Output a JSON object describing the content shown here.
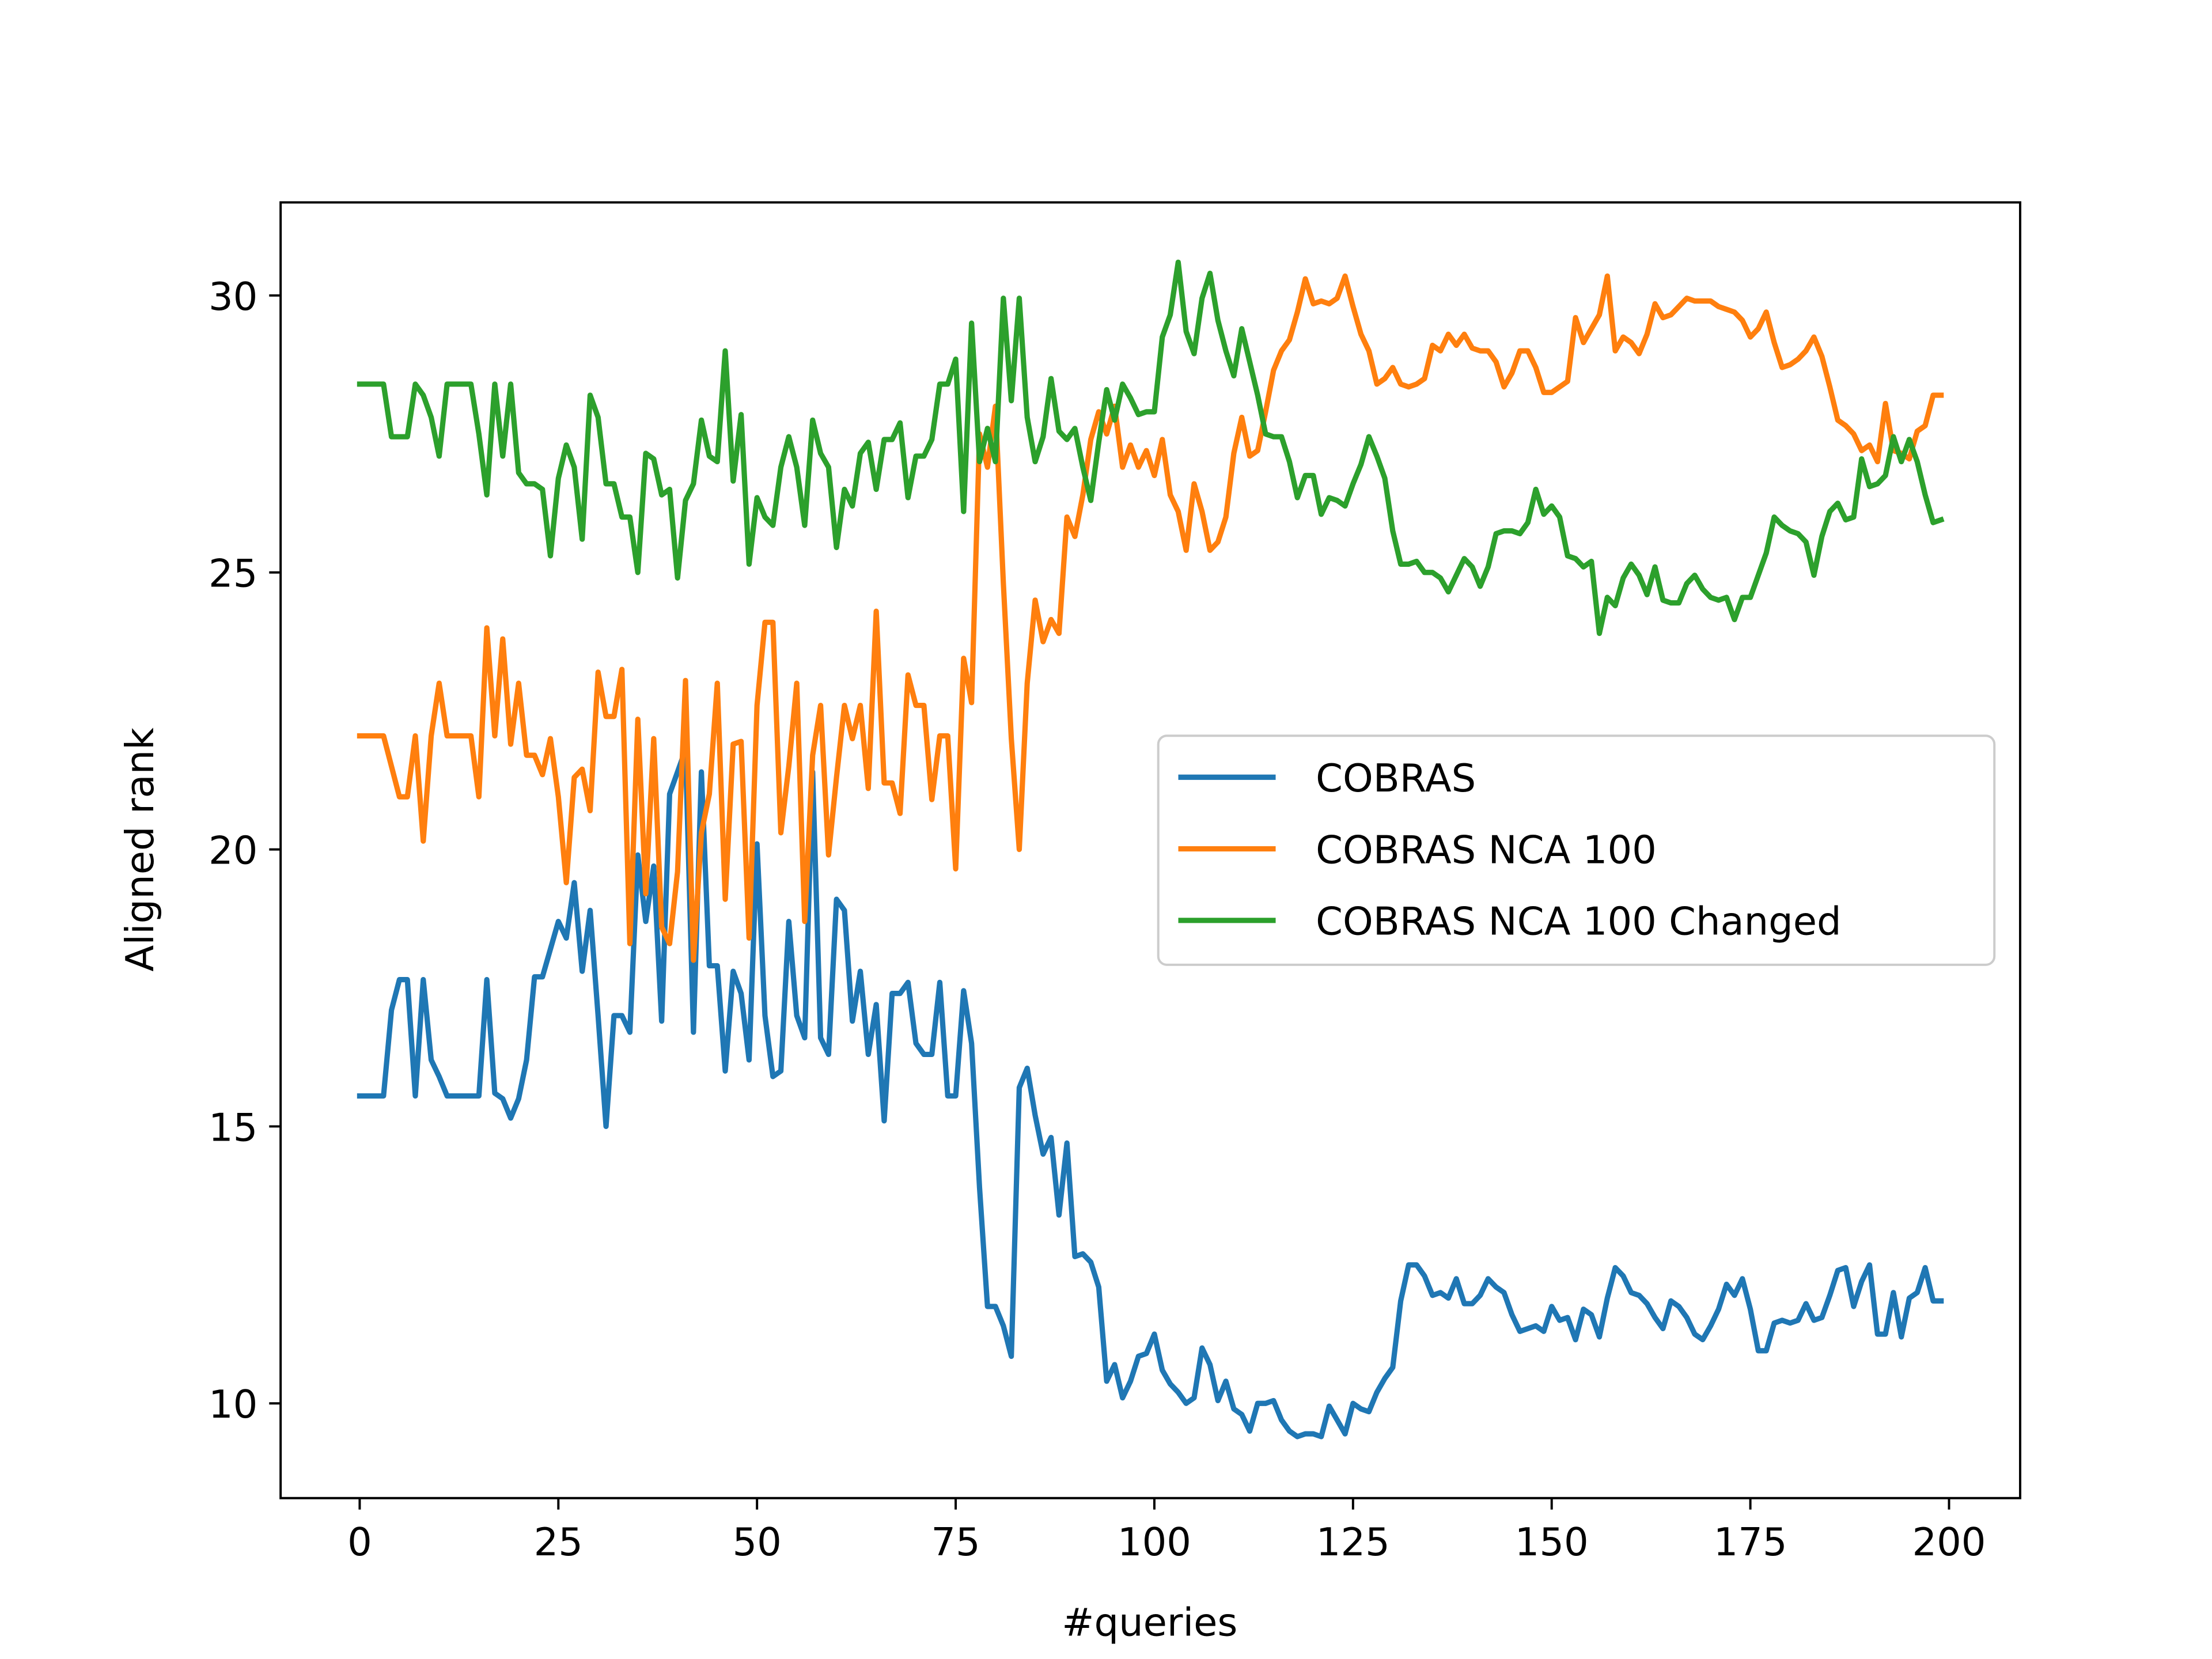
{
  "chart_data": {
    "type": "line",
    "xlabel": "#queries",
    "ylabel": "Aligned rank",
    "x": [
      0,
      1,
      2,
      3,
      4,
      5,
      6,
      7,
      8,
      9,
      10,
      11,
      12,
      13,
      14,
      15,
      16,
      17,
      18,
      19,
      20,
      21,
      22,
      23,
      24,
      25,
      26,
      27,
      28,
      29,
      30,
      31,
      32,
      33,
      34,
      35,
      36,
      37,
      38,
      39,
      40,
      41,
      42,
      43,
      44,
      45,
      46,
      47,
      48,
      49,
      50,
      51,
      52,
      53,
      54,
      55,
      56,
      57,
      58,
      59,
      60,
      61,
      62,
      63,
      64,
      65,
      66,
      67,
      68,
      69,
      70,
      71,
      72,
      73,
      74,
      75,
      76,
      77,
      78,
      79,
      80,
      81,
      82,
      83,
      84,
      85,
      86,
      87,
      88,
      89,
      90,
      91,
      92,
      93,
      94,
      95,
      96,
      97,
      98,
      99,
      100,
      101,
      102,
      103,
      104,
      105,
      106,
      107,
      108,
      109,
      110,
      111,
      112,
      113,
      114,
      115,
      116,
      117,
      118,
      119,
      120,
      121,
      122,
      123,
      124,
      125,
      126,
      127,
      128,
      129,
      130,
      131,
      132,
      133,
      134,
      135,
      136,
      137,
      138,
      139,
      140,
      141,
      142,
      143,
      144,
      145,
      146,
      147,
      148,
      149,
      150,
      151,
      152,
      153,
      154,
      155,
      156,
      157,
      158,
      159,
      160,
      161,
      162,
      163,
      164,
      165,
      166,
      167,
      168,
      169,
      170,
      171,
      172,
      173,
      174,
      175,
      176,
      177,
      178,
      179,
      180,
      181,
      182,
      183,
      184,
      185,
      186,
      187,
      188,
      189,
      190,
      191,
      192,
      193,
      194,
      195,
      196,
      197,
      198,
      199
    ],
    "series": [
      {
        "name": "COBRAS",
        "color": "#1f77b4",
        "values": [
          15.55,
          15.55,
          15.55,
          15.55,
          17.1,
          17.65,
          17.65,
          15.55,
          17.65,
          16.2,
          15.9,
          15.55,
          15.55,
          15.55,
          15.55,
          15.55,
          17.65,
          15.6,
          15.5,
          15.15,
          15.5,
          16.2,
          17.7,
          17.7,
          18.2,
          18.7,
          18.4,
          19.4,
          17.8,
          18.9,
          17.0,
          15.0,
          17.0,
          17.0,
          16.7,
          19.9,
          18.7,
          19.7,
          16.9,
          21.0,
          21.4,
          21.8,
          16.7,
          21.4,
          17.9,
          17.9,
          16.0,
          17.8,
          17.4,
          16.2,
          20.1,
          17.0,
          15.9,
          16.0,
          18.7,
          17.0,
          16.6,
          21.4,
          16.6,
          16.3,
          19.1,
          18.9,
          16.9,
          17.8,
          16.3,
          17.2,
          15.1,
          17.4,
          17.4,
          17.6,
          16.5,
          16.3,
          16.3,
          17.6,
          15.55,
          15.55,
          17.45,
          16.5,
          13.9,
          11.75,
          11.75,
          11.4,
          10.85,
          15.7,
          16.05,
          15.2,
          14.5,
          14.8,
          13.4,
          14.7,
          12.65,
          12.7,
          12.55,
          12.1,
          10.4,
          10.7,
          10.1,
          10.4,
          10.85,
          10.9,
          11.25,
          10.6,
          10.35,
          10.2,
          10.0,
          10.1,
          11.0,
          10.7,
          10.05,
          10.4,
          9.9,
          9.8,
          9.5,
          10.0,
          10.0,
          10.05,
          9.7,
          9.5,
          9.4,
          9.45,
          9.45,
          9.4,
          9.95,
          9.7,
          9.45,
          10.0,
          9.9,
          9.85,
          10.2,
          10.45,
          10.65,
          11.85,
          12.5,
          12.5,
          12.3,
          11.95,
          12.0,
          11.9,
          12.25,
          11.8,
          11.8,
          11.95,
          12.25,
          12.1,
          12.0,
          11.6,
          11.3,
          11.35,
          11.4,
          11.3,
          11.75,
          11.5,
          11.55,
          11.15,
          11.7,
          11.6,
          11.2,
          11.9,
          12.45,
          12.3,
          12.0,
          11.95,
          11.8,
          11.55,
          11.35,
          11.85,
          11.75,
          11.55,
          11.25,
          11.15,
          11.4,
          11.7,
          12.15,
          11.95,
          12.25,
          11.7,
          10.95,
          10.95,
          11.45,
          11.5,
          11.45,
          11.5,
          11.8,
          11.5,
          11.55,
          11.95,
          12.4,
          12.45,
          11.75,
          12.2,
          12.5,
          11.25,
          11.25,
          12.0,
          11.2,
          11.9,
          12.0,
          12.45,
          11.85,
          11.85
        ]
      },
      {
        "name": "COBRAS NCA 100",
        "color": "#ff7f0e",
        "values": [
          22.05,
          22.05,
          22.05,
          22.05,
          21.5,
          20.95,
          20.95,
          22.05,
          20.15,
          22.05,
          23.0,
          22.05,
          22.05,
          22.05,
          22.05,
          20.95,
          24.0,
          22.05,
          23.8,
          21.9,
          23.0,
          21.7,
          21.7,
          21.35,
          22.0,
          20.95,
          19.4,
          21.3,
          21.45,
          20.7,
          23.2,
          22.4,
          22.4,
          23.25,
          18.3,
          22.35,
          19.2,
          22.0,
          18.6,
          18.3,
          19.6,
          23.05,
          18.0,
          20.3,
          21.0,
          23.0,
          19.1,
          21.9,
          21.95,
          18.4,
          22.6,
          24.1,
          24.1,
          20.3,
          21.5,
          23.0,
          18.7,
          21.7,
          22.6,
          19.9,
          21.3,
          22.6,
          22.0,
          22.6,
          21.1,
          24.3,
          21.2,
          21.2,
          20.65,
          23.15,
          22.6,
          22.6,
          20.9,
          22.05,
          22.05,
          19.65,
          23.45,
          22.65,
          27.5,
          26.9,
          28.0,
          24.8,
          22.0,
          20.0,
          23.0,
          24.5,
          23.75,
          24.15,
          23.9,
          26.0,
          25.65,
          26.4,
          27.4,
          27.9,
          27.5,
          28.0,
          26.9,
          27.3,
          26.9,
          27.2,
          26.75,
          27.4,
          26.4,
          26.1,
          25.4,
          26.6,
          26.1,
          25.4,
          25.55,
          26.0,
          27.15,
          27.8,
          27.1,
          27.2,
          27.9,
          28.65,
          29.0,
          29.2,
          29.7,
          30.3,
          29.85,
          29.9,
          29.85,
          29.95,
          30.35,
          29.8,
          29.3,
          29.0,
          28.4,
          28.5,
          28.7,
          28.4,
          28.35,
          28.4,
          28.5,
          29.1,
          29.0,
          29.3,
          29.1,
          29.3,
          29.05,
          29.0,
          29.0,
          28.8,
          28.35,
          28.6,
          29.0,
          29.0,
          28.7,
          28.25,
          28.25,
          28.35,
          28.45,
          29.6,
          29.15,
          29.4,
          29.65,
          30.35,
          29.0,
          29.25,
          29.15,
          28.95,
          29.3,
          29.85,
          29.6,
          29.65,
          29.8,
          29.95,
          29.9,
          29.9,
          29.9,
          29.8,
          29.75,
          29.7,
          29.55,
          29.25,
          29.4,
          29.7,
          29.15,
          28.7,
          28.75,
          28.85,
          29.0,
          29.25,
          28.9,
          28.35,
          27.75,
          27.65,
          27.5,
          27.2,
          27.3,
          27.0,
          28.05,
          27.2,
          27.15,
          27.05,
          27.55,
          27.65,
          28.2,
          28.2
        ]
      },
      {
        "name": "COBRAS NCA 100 Changed",
        "color": "#2ca02c",
        "values": [
          28.4,
          28.4,
          28.4,
          28.4,
          27.45,
          27.45,
          27.45,
          28.4,
          28.2,
          27.8,
          27.1,
          28.4,
          28.4,
          28.4,
          28.4,
          27.5,
          26.4,
          28.4,
          27.1,
          28.4,
          26.8,
          26.6,
          26.6,
          26.5,
          25.3,
          26.7,
          27.3,
          26.9,
          25.6,
          28.2,
          27.8,
          26.6,
          26.6,
          26.0,
          26.0,
          25.0,
          27.15,
          27.05,
          26.4,
          26.5,
          24.9,
          26.3,
          26.6,
          27.75,
          27.1,
          27.0,
          29.0,
          26.65,
          27.85,
          25.15,
          26.35,
          26.0,
          25.85,
          26.9,
          27.45,
          26.9,
          25.85,
          27.75,
          27.15,
          26.9,
          25.45,
          26.5,
          26.2,
          27.15,
          27.35,
          26.5,
          27.4,
          27.4,
          27.7,
          26.35,
          27.1,
          27.1,
          27.4,
          28.4,
          28.4,
          28.85,
          26.1,
          29.5,
          27.0,
          27.6,
          27.0,
          29.95,
          28.1,
          29.95,
          27.8,
          27.0,
          27.45,
          28.5,
          27.55,
          27.4,
          27.6,
          26.9,
          26.3,
          27.35,
          28.3,
          27.75,
          28.4,
          28.15,
          27.85,
          27.9,
          27.9,
          29.25,
          29.65,
          30.6,
          29.35,
          28.95,
          29.95,
          30.4,
          29.55,
          29.0,
          28.55,
          29.4,
          28.8,
          28.2,
          27.5,
          27.45,
          27.45,
          27.0,
          26.35,
          26.75,
          26.75,
          26.05,
          26.35,
          26.3,
          26.2,
          26.6,
          26.95,
          27.45,
          27.1,
          26.7,
          25.75,
          25.15,
          25.15,
          25.2,
          25.0,
          25.0,
          24.9,
          24.65,
          24.95,
          25.25,
          25.1,
          24.75,
          25.1,
          25.7,
          25.75,
          25.75,
          25.7,
          25.9,
          26.5,
          26.05,
          26.2,
          26.0,
          25.3,
          25.25,
          25.1,
          25.2,
          23.9,
          24.55,
          24.4,
          24.9,
          25.15,
          24.95,
          24.6,
          25.1,
          24.5,
          24.45,
          24.45,
          24.8,
          24.95,
          24.7,
          24.55,
          24.5,
          24.55,
          24.15,
          24.55,
          24.55,
          24.95,
          25.35,
          26.0,
          25.85,
          25.75,
          25.7,
          25.55,
          24.95,
          25.65,
          26.1,
          26.25,
          25.95,
          26.0,
          27.05,
          26.55,
          26.6,
          26.75,
          27.45,
          27.0,
          27.4,
          27.0,
          26.4,
          25.9,
          25.95
        ]
      }
    ],
    "xlim": [
      -9.95,
      208.95
    ],
    "ylim": [
      8.29,
      31.68
    ],
    "xticks": [
      0,
      25,
      50,
      75,
      100,
      125,
      150,
      175,
      200
    ],
    "yticks": [
      10,
      15,
      20,
      25,
      30
    ],
    "legend": "center right"
  }
}
